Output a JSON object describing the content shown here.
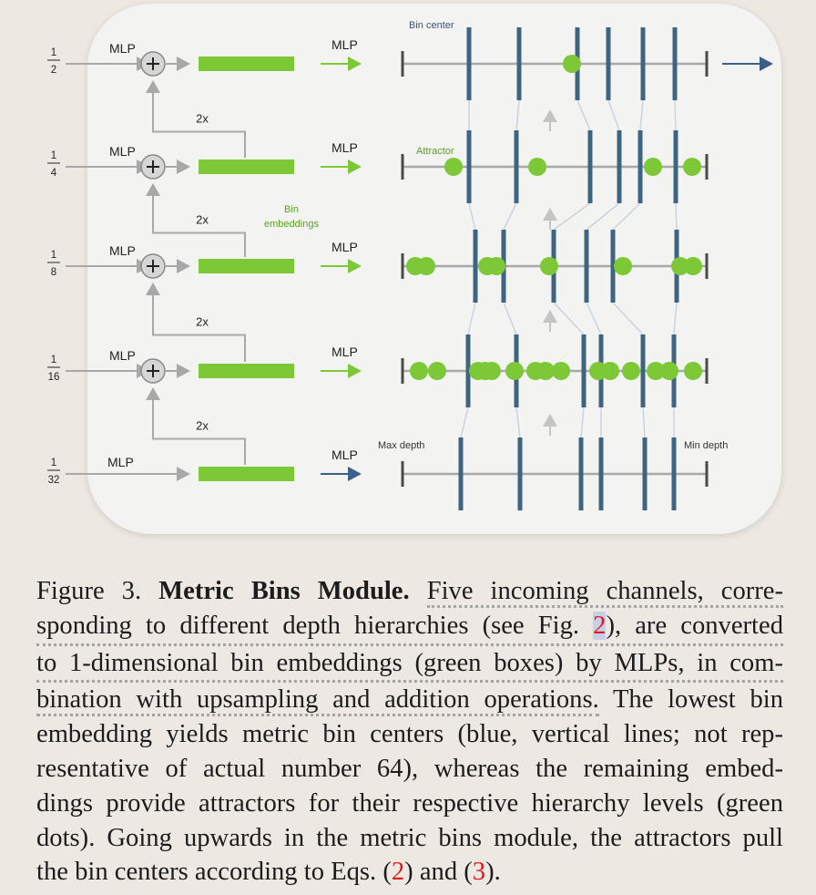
{
  "diagram": {
    "levels": [
      {
        "num": "1",
        "den": "2",
        "mlp_left": "MLP",
        "mlp_right": "MLP",
        "upsample": "2x"
      },
      {
        "num": "1",
        "den": "4",
        "mlp_left": "MLP",
        "mlp_right": "MLP",
        "upsample": "2x"
      },
      {
        "num": "1",
        "den": "8",
        "mlp_left": "MLP",
        "mlp_right": "MLP",
        "upsample": "2x"
      },
      {
        "num": "1",
        "den": "16",
        "mlp_left": "MLP",
        "mlp_right": "MLP",
        "upsample": "2x"
      },
      {
        "num": "1",
        "den": "32",
        "mlp_left": "MLP",
        "mlp_right": "MLP"
      }
    ],
    "bin_center_label": "Bin center",
    "attractor_label": "Attractor",
    "bin_embeddings_label": "Bin\nembeddings",
    "max_depth_label": "Max depth",
    "min_depth_label": "Min depth",
    "colors": {
      "green": "#7dc836",
      "blue_line": "#3f6481",
      "blue_text": "#3b5578",
      "gray": "#a8a8a8",
      "caption_ref": "#e01a1a"
    }
  },
  "caption": {
    "label": "Figure 3.",
    "title": "Metric Bins Module.",
    "seg1": "Five incoming channels, corre-",
    "seg2a": "sponding to different depth hierarchies (see Fig.",
    "ref_fig": "2",
    "seg2b": "), are converted",
    "seg3": "to 1-dimensional bin embeddings (green boxes) by MLPs, in com-",
    "seg4a": "bination with upsampling and addition operations.",
    "seg4b": "The lowest bin",
    "seg5": "embedding yields metric bin centers (blue, vertical lines; not rep-",
    "seg6": "resentative of actual number 64), whereas the remaining embed-",
    "seg7": "dings provide attractors for their respective hierarchy levels (green",
    "seg8": "dots). Going upwards in the metric bins module, the attractors pull",
    "seg9a": "the bin centers according to Eqs. (",
    "ref_eq2": "2",
    "seg9b": ") and (",
    "ref_eq3": "3",
    "seg9c": ")."
  }
}
